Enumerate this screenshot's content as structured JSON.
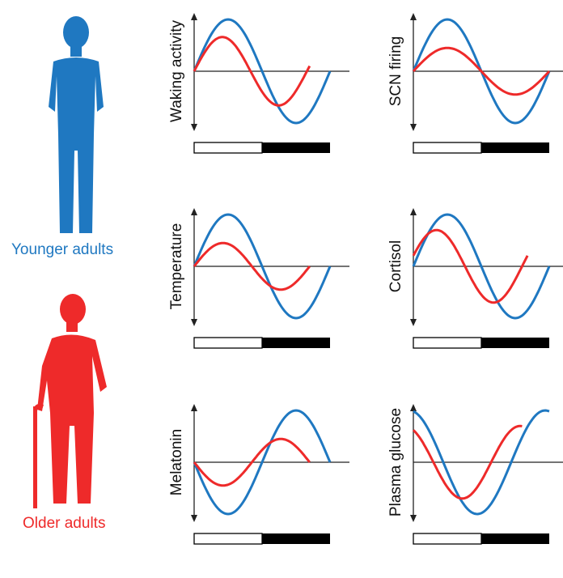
{
  "labels": {
    "younger": "Younger adults",
    "older": "Older adults"
  },
  "colors": {
    "younger": "#1f78c1",
    "older": "#ee2a2a",
    "axis": "#222222",
    "day_bar": "#ffffff",
    "night_bar": "#000000"
  },
  "icons": [
    "younger-adult-silhouette-icon",
    "older-adult-with-cane-silhouette-icon"
  ],
  "panels": [
    {
      "id": "waking",
      "title": "Waking activity",
      "younger": {
        "amplitude": 1.0,
        "phase": 0.0
      },
      "older": {
        "amplitude": 0.66,
        "phase": 0.0,
        "period": 0.83,
        "end": 0.85
      }
    },
    {
      "id": "scn",
      "title": "SCN firing",
      "younger": {
        "amplitude": 1.0,
        "phase": 0.0
      },
      "older": {
        "amplitude": 0.45,
        "phase": 0.0
      }
    },
    {
      "id": "temperature",
      "title": "Temperature",
      "younger": {
        "amplitude": 1.0,
        "phase": 0.0
      },
      "older": {
        "amplitude": 0.45,
        "phase": 0.0,
        "period": 0.85,
        "end": 0.85
      }
    },
    {
      "id": "cortisol",
      "title": "Cortisol",
      "younger": {
        "amplitude": 1.0,
        "phase": 0.0
      },
      "older": {
        "amplitude": 0.7,
        "phase": -0.04,
        "period": 0.84,
        "end": 0.84
      }
    },
    {
      "id": "melatonin",
      "title": "Melatonin",
      "younger": {
        "amplitude": 1.0,
        "phase": 0.0
      },
      "older": {
        "amplitude": 0.45,
        "phase": 0.0,
        "period": 0.85,
        "end": 0.85
      }
    },
    {
      "id": "glucose",
      "title": "Plasma glucose",
      "younger": {
        "amplitude": 1.0,
        "phase": 0.0
      },
      "older": {
        "amplitude": 0.7,
        "phase": 0.04,
        "period": 0.85,
        "end": 0.8
      }
    }
  ]
}
